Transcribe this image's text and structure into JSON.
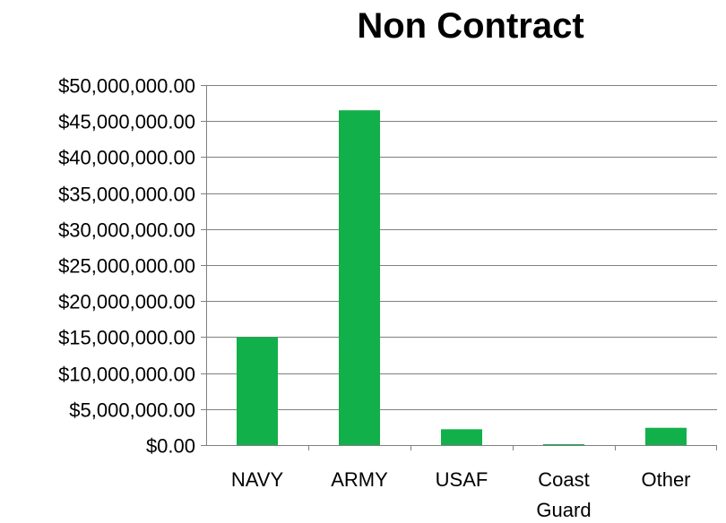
{
  "chart_data": {
    "type": "bar",
    "title": "Non Contract",
    "xlabel": "",
    "ylabel": "",
    "categories": [
      "NAVY",
      "ARMY",
      "USAF",
      "Coast Guard",
      "Other"
    ],
    "category_lines": [
      [
        "NAVY"
      ],
      [
        "ARMY"
      ],
      [
        "USAF"
      ],
      [
        "Coast",
        "Guard"
      ],
      [
        "Other"
      ]
    ],
    "values": [
      15000000,
      46500000,
      2200000,
      100000,
      2400000
    ],
    "ylim": [
      0,
      50000000
    ],
    "y_ticks": [
      0,
      5000000,
      10000000,
      15000000,
      20000000,
      25000000,
      30000000,
      35000000,
      40000000,
      45000000,
      50000000
    ],
    "y_tick_labels": [
      "$0.00",
      "$5,000,000.00",
      "$10,000,000.00",
      "$15,000,000.00",
      "$20,000,000.00",
      "$25,000,000.00",
      "$30,000,000.00",
      "$35,000,000.00",
      "$40,000,000.00",
      "$45,000,000.00",
      "$50,000,000.00"
    ],
    "grid": true,
    "legend": "none",
    "bar_color": "#12b04a",
    "grid_color": "#808080"
  }
}
